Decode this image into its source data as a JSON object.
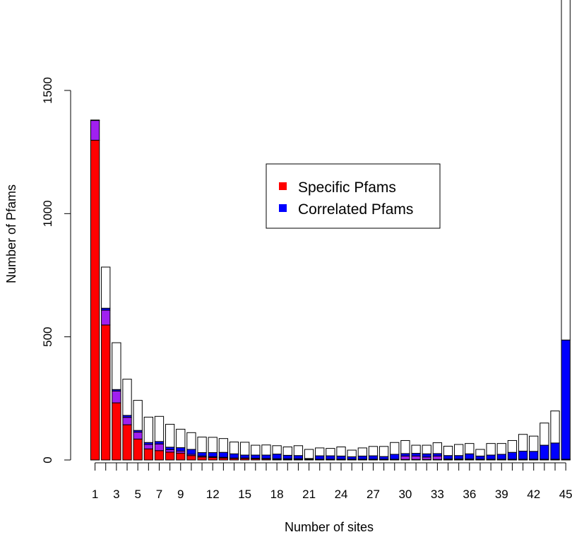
{
  "chart_data": {
    "type": "bar",
    "stacked": true,
    "title": "",
    "xlabel": "Number of sites",
    "ylabel": "Number of Pfams",
    "ylim": [
      0,
      1900
    ],
    "yticks": [
      0,
      500,
      1000,
      1500
    ],
    "yticks_text": [
      "0",
      "500",
      "1000",
      "1500"
    ],
    "x_tick_labels_shown": [
      "1",
      "3",
      "5",
      "7",
      "9",
      "12",
      "15",
      "18",
      "21",
      "24",
      "27",
      "30",
      "33",
      "36",
      "39",
      "42",
      "45"
    ],
    "x": [
      1,
      2,
      3,
      4,
      5,
      6,
      7,
      8,
      9,
      10,
      11,
      12,
      13,
      14,
      15,
      16,
      17,
      18,
      19,
      20,
      21,
      22,
      23,
      24,
      25,
      26,
      27,
      28,
      29,
      30,
      31,
      32,
      33,
      34,
      35,
      36,
      37,
      38,
      39,
      40,
      41,
      42,
      43,
      44,
      45
    ],
    "series": [
      {
        "name": "Specific Pfams",
        "color": "#ff0000",
        "values": [
          1298,
          548,
          232,
          143,
          85,
          45,
          38,
          32,
          28,
          18,
          12,
          10,
          8,
          6,
          6,
          5,
          4,
          3,
          3,
          3,
          2,
          2,
          2,
          2,
          2,
          2,
          2,
          2,
          2,
          2,
          2,
          2,
          2,
          2,
          2,
          2,
          2,
          2,
          2,
          2,
          2,
          2,
          2,
          2,
          2
        ]
      },
      {
        "name": "",
        "color": "#a020f0",
        "values": [
          80,
          60,
          48,
          30,
          28,
          18,
          27,
          10,
          8,
          5,
          4,
          3,
          3,
          2,
          2,
          2,
          2,
          2,
          2,
          2,
          1,
          1,
          1,
          1,
          1,
          1,
          1,
          1,
          1,
          14,
          14,
          10,
          14,
          2,
          2,
          2,
          1,
          1,
          1,
          1,
          1,
          1,
          1,
          1,
          1
        ]
      },
      {
        "name": "Correlated Pfams",
        "color": "#0000ff",
        "values": [
          2,
          8,
          6,
          8,
          7,
          8,
          10,
          10,
          14,
          20,
          14,
          17,
          20,
          17,
          12,
          13,
          14,
          19,
          14,
          13,
          3,
          14,
          14,
          13,
          10,
          13,
          14,
          11,
          20,
          10,
          11,
          13,
          10,
          14,
          14,
          21,
          13,
          17,
          20,
          28,
          33,
          32,
          57,
          66,
          484
        ]
      },
      {
        "name": "",
        "color": "#ffffff",
        "values": [
          0,
          167,
          190,
          147,
          122,
          103,
          102,
          93,
          75,
          68,
          63,
          62,
          56,
          48,
          52,
          40,
          41,
          34,
          34,
          40,
          37,
          32,
          30,
          37,
          27,
          33,
          38,
          41,
          48,
          53,
          33,
          35,
          44,
          38,
          45,
          42,
          27,
          47,
          44,
          48,
          68,
          62,
          90,
          130,
          1397
        ]
      }
    ],
    "legend": {
      "position": "center-right",
      "entries": [
        {
          "label": "Specific Pfams",
          "color": "#ff0000"
        },
        {
          "label": "Correlated Pfams",
          "color": "#0000ff"
        }
      ]
    }
  }
}
